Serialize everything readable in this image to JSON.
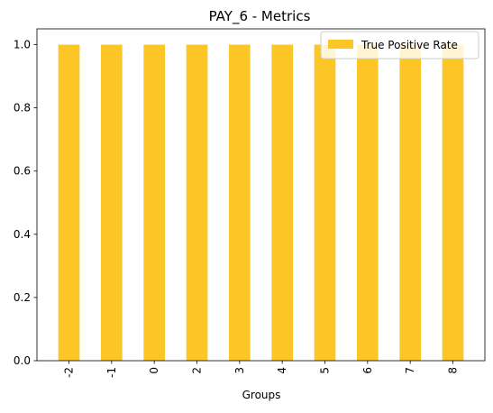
{
  "chart_data": {
    "type": "bar",
    "title": "PAY_6 - Metrics",
    "xlabel": "Groups",
    "ylabel": "",
    "categories": [
      "-2",
      "-1",
      "0",
      "2",
      "3",
      "4",
      "5",
      "6",
      "7",
      "8"
    ],
    "series": [
      {
        "name": "True Positive Rate",
        "values": [
          1.0,
          1.0,
          1.0,
          1.0,
          1.0,
          1.0,
          1.0,
          1.0,
          1.0,
          1.0
        ],
        "color": "#fcc726"
      }
    ],
    "ylim": [
      0,
      1.05
    ],
    "yticks": [
      "0.0",
      "0.2",
      "0.4",
      "0.6",
      "0.8",
      "1.0"
    ],
    "grid": false,
    "legend_position": "upper right",
    "xtick_rotation": "vertical"
  }
}
